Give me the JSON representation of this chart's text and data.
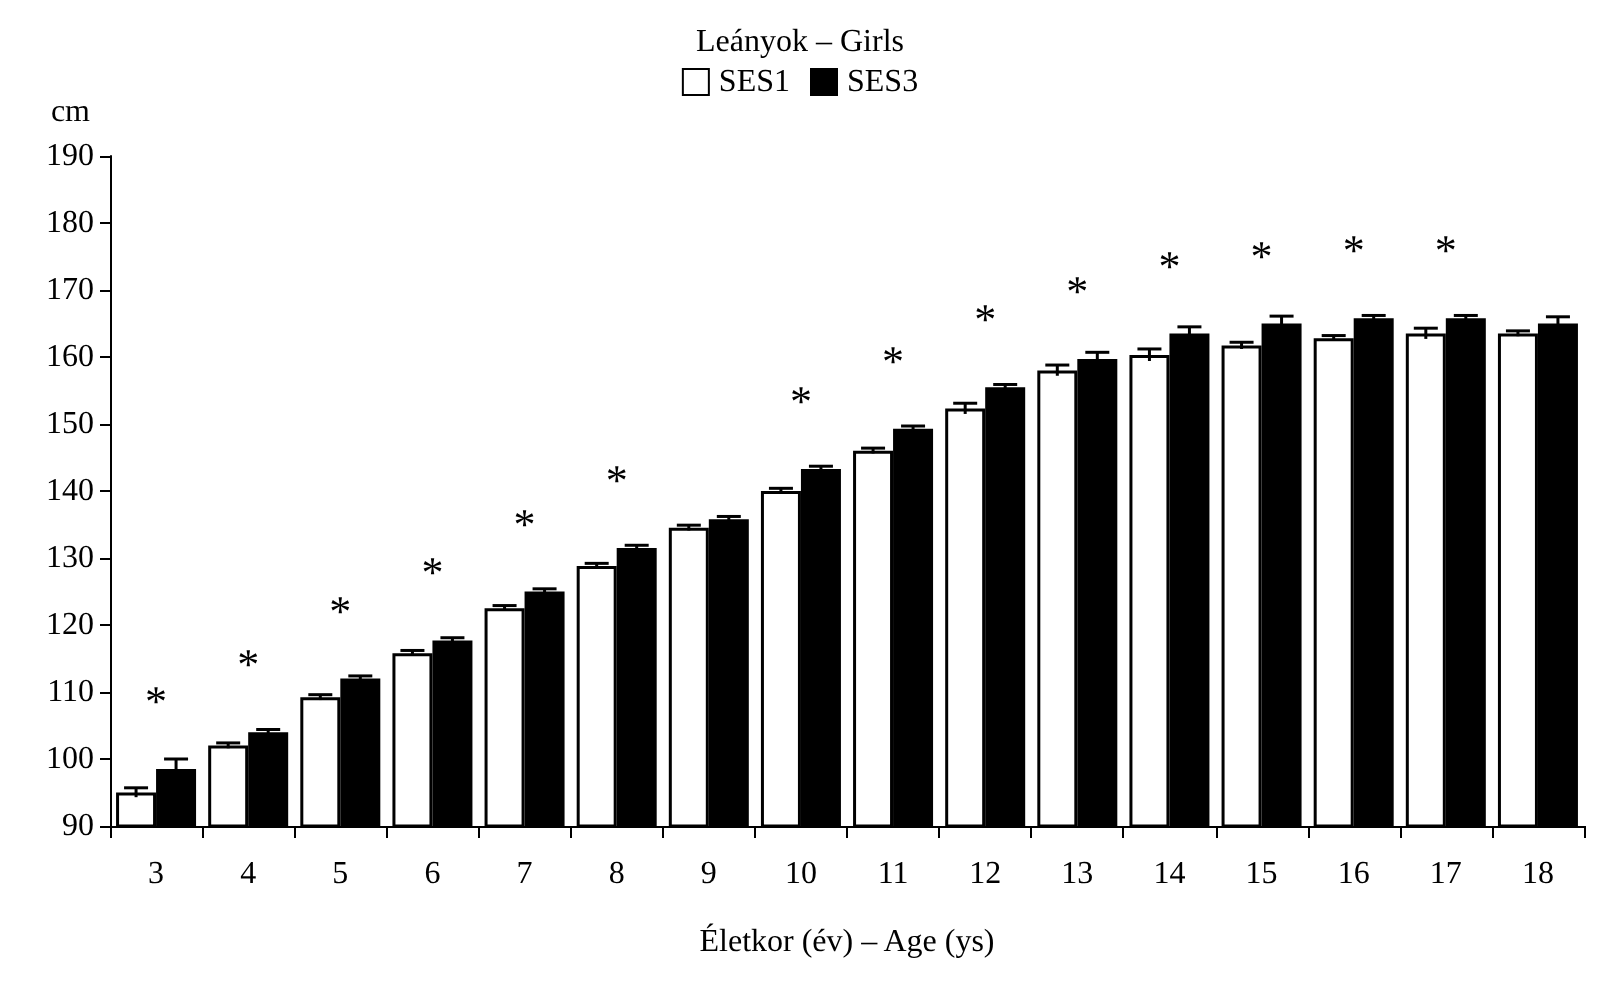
{
  "chart_data": {
    "type": "bar",
    "title": "Leányok – Girls",
    "xlabel": "Életkor (év) – Age (ys)",
    "ylabel": "cm",
    "categories": [
      "3",
      "4",
      "5",
      "6",
      "7",
      "8",
      "9",
      "10",
      "11",
      "12",
      "13",
      "14",
      "15",
      "16",
      "17",
      "18"
    ],
    "series": [
      {
        "name": "SES1",
        "color": "#ffffff",
        "values": [
          95,
          102,
          109.2,
          115.8,
          122.5,
          128.8,
          134.5,
          140,
          146,
          152.3,
          158,
          160.3,
          161.7,
          162.8,
          163.5,
          163.5
        ],
        "errors": [
          0.7,
          0.4,
          0.4,
          0.4,
          0.4,
          0.4,
          0.4,
          0.4,
          0.4,
          0.8,
          0.8,
          0.9,
          0.5,
          0.4,
          0.8,
          0.4
        ]
      },
      {
        "name": "SES3",
        "color": "#000000",
        "values": [
          98.5,
          104,
          112,
          117.7,
          125,
          131.5,
          135.8,
          143.3,
          149.3,
          155.5,
          159.7,
          163.5,
          165,
          165.8,
          165.8,
          165
        ],
        "errors": [
          1.5,
          0.4,
          0.4,
          0.4,
          0.4,
          0.4,
          0.4,
          0.4,
          0.4,
          0.4,
          1,
          1,
          1.1,
          0.4,
          0.4,
          1
        ]
      }
    ],
    "ylim": [
      90,
      190
    ],
    "yticks": [
      90,
      100,
      110,
      120,
      130,
      140,
      150,
      160,
      170,
      180,
      190
    ],
    "grid": false,
    "legend": "top",
    "annotations": [
      {
        "text": "*",
        "x": "3",
        "y": 98.5
      },
      {
        "text": "*",
        "x": "4",
        "y": 104
      },
      {
        "text": "*",
        "x": "5",
        "y": 112
      },
      {
        "text": "*",
        "x": "6",
        "y": 117.7
      },
      {
        "text": "*",
        "x": "7",
        "y": 125
      },
      {
        "text": "*",
        "x": "8",
        "y": 131.5
      },
      {
        "text": "*",
        "x": "10",
        "y": 143.3
      },
      {
        "text": "*",
        "x": "11",
        "y": 149.3
      },
      {
        "text": "*",
        "x": "12",
        "y": 155.5
      },
      {
        "text": "*",
        "x": "13",
        "y": 159.7
      },
      {
        "text": "*",
        "x": "14",
        "y": 163.5
      },
      {
        "text": "*",
        "x": "15",
        "y": 165
      },
      {
        "text": "*",
        "x": "16",
        "y": 165.8
      },
      {
        "text": "*",
        "x": "17",
        "y": 165.8
      }
    ]
  }
}
